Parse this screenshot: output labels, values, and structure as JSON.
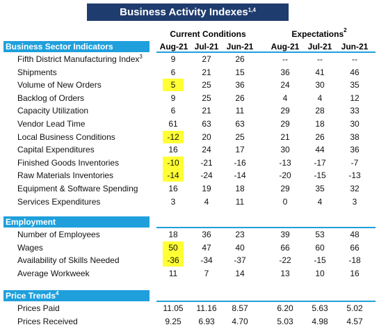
{
  "title": {
    "text": "Business Activity Indexes",
    "sup": "1,4"
  },
  "column_groups": [
    {
      "text": "Current Conditions"
    },
    {
      "text": "Expectations",
      "sup": "2"
    }
  ],
  "columns": [
    "Aug-21",
    "Jul-21",
    "Jun-21",
    "Aug-21",
    "Jul-21",
    "Jun-21"
  ],
  "sections": [
    {
      "title": "Business Sector Indicators",
      "rows": [
        {
          "label": "Fifth District Manufacturing Index",
          "sup": "3",
          "values": [
            "9",
            "27",
            "26",
            "--",
            "--",
            "--"
          ]
        },
        {
          "label": "Shipments",
          "values": [
            "6",
            "21",
            "15",
            "36",
            "41",
            "46"
          ]
        },
        {
          "label": "Volume of New Orders",
          "highlight": true,
          "values": [
            "5",
            "25",
            "36",
            "24",
            "30",
            "35"
          ]
        },
        {
          "label": "Backlog of Orders",
          "values": [
            "9",
            "25",
            "26",
            "4",
            "4",
            "12"
          ]
        },
        {
          "label": "Capacity Utilization",
          "values": [
            "6",
            "21",
            "11",
            "29",
            "28",
            "33"
          ]
        },
        {
          "label": "Vendor Lead Time",
          "values": [
            "61",
            "63",
            "63",
            "29",
            "18",
            "30"
          ]
        },
        {
          "label": "Local Business Conditions",
          "highlight": true,
          "values": [
            "-12",
            "20",
            "25",
            "21",
            "26",
            "38"
          ]
        },
        {
          "label": "Capital Expenditures",
          "values": [
            "16",
            "24",
            "17",
            "30",
            "44",
            "36"
          ]
        },
        {
          "label": "Finished Goods Inventories",
          "highlight": true,
          "values": [
            "-10",
            "-21",
            "-16",
            "-13",
            "-17",
            "-7"
          ]
        },
        {
          "label": "Raw Materials Inventories",
          "highlight": true,
          "values": [
            "-14",
            "-24",
            "-14",
            "-20",
            "-15",
            "-13"
          ]
        },
        {
          "label": "Equipment & Software Spending",
          "values": [
            "16",
            "19",
            "18",
            "29",
            "35",
            "32"
          ]
        },
        {
          "label": "Services Expenditures",
          "values": [
            "3",
            "4",
            "11",
            "0",
            "4",
            "3"
          ]
        }
      ]
    },
    {
      "title": "Employment",
      "rows": [
        {
          "label": "Number of Employees",
          "values": [
            "18",
            "36",
            "23",
            "39",
            "53",
            "48"
          ]
        },
        {
          "label": "Wages",
          "highlight": true,
          "values": [
            "50",
            "47",
            "40",
            "66",
            "60",
            "66"
          ]
        },
        {
          "label": "Availability of Skills Needed",
          "highlight": true,
          "values": [
            "-36",
            "-34",
            "-37",
            "-22",
            "-15",
            "-18"
          ]
        },
        {
          "label": "Average Workweek",
          "values": [
            "11",
            "7",
            "14",
            "13",
            "10",
            "16"
          ]
        }
      ]
    },
    {
      "title": "Price Trends",
      "sup": "4",
      "rows": [
        {
          "label": "Prices Paid",
          "values": [
            "11.05",
            "11.16",
            "8.57",
            "6.20",
            "5.63",
            "5.02"
          ]
        },
        {
          "label": "Prices Received",
          "values": [
            "9.25",
            "6.93",
            "4.70",
            "5.03",
            "4.98",
            "4.57"
          ]
        }
      ]
    }
  ]
}
